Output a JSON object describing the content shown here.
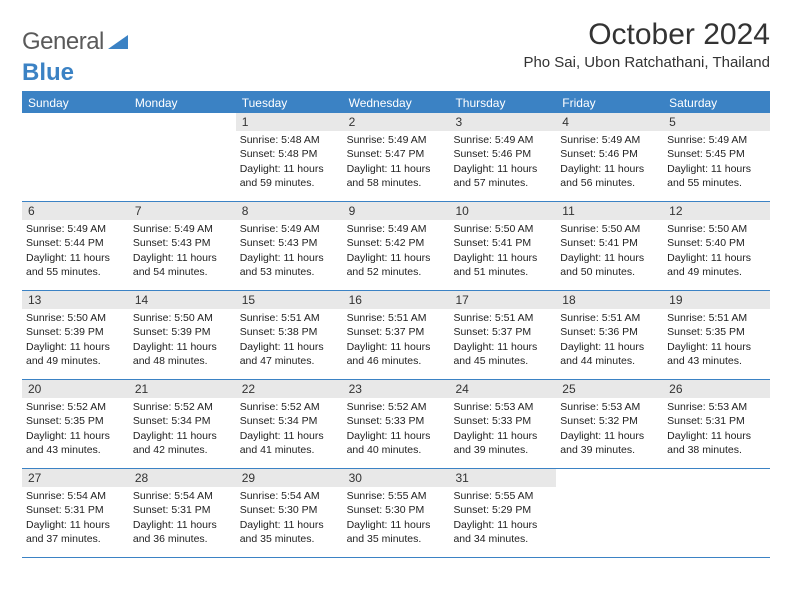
{
  "logo": {
    "word1": "General",
    "word2": "Blue"
  },
  "title": "October 2024",
  "location": "Pho Sai, Ubon Ratchathani, Thailand",
  "colors": {
    "accent": "#3b82c4",
    "header_bg": "#3b82c4",
    "header_text": "#ffffff",
    "daynum_bg": "#e8e8e8",
    "text": "#222222",
    "logo_gray": "#5a5a5a"
  },
  "day_headers": [
    "Sunday",
    "Monday",
    "Tuesday",
    "Wednesday",
    "Thursday",
    "Friday",
    "Saturday"
  ],
  "weeks": [
    [
      null,
      null,
      {
        "n": "1",
        "sunrise": "5:48 AM",
        "sunset": "5:48 PM",
        "daylight": "11 hours and 59 minutes."
      },
      {
        "n": "2",
        "sunrise": "5:49 AM",
        "sunset": "5:47 PM",
        "daylight": "11 hours and 58 minutes."
      },
      {
        "n": "3",
        "sunrise": "5:49 AM",
        "sunset": "5:46 PM",
        "daylight": "11 hours and 57 minutes."
      },
      {
        "n": "4",
        "sunrise": "5:49 AM",
        "sunset": "5:46 PM",
        "daylight": "11 hours and 56 minutes."
      },
      {
        "n": "5",
        "sunrise": "5:49 AM",
        "sunset": "5:45 PM",
        "daylight": "11 hours and 55 minutes."
      }
    ],
    [
      {
        "n": "6",
        "sunrise": "5:49 AM",
        "sunset": "5:44 PM",
        "daylight": "11 hours and 55 minutes."
      },
      {
        "n": "7",
        "sunrise": "5:49 AM",
        "sunset": "5:43 PM",
        "daylight": "11 hours and 54 minutes."
      },
      {
        "n": "8",
        "sunrise": "5:49 AM",
        "sunset": "5:43 PM",
        "daylight": "11 hours and 53 minutes."
      },
      {
        "n": "9",
        "sunrise": "5:49 AM",
        "sunset": "5:42 PM",
        "daylight": "11 hours and 52 minutes."
      },
      {
        "n": "10",
        "sunrise": "5:50 AM",
        "sunset": "5:41 PM",
        "daylight": "11 hours and 51 minutes."
      },
      {
        "n": "11",
        "sunrise": "5:50 AM",
        "sunset": "5:41 PM",
        "daylight": "11 hours and 50 minutes."
      },
      {
        "n": "12",
        "sunrise": "5:50 AM",
        "sunset": "5:40 PM",
        "daylight": "11 hours and 49 minutes."
      }
    ],
    [
      {
        "n": "13",
        "sunrise": "5:50 AM",
        "sunset": "5:39 PM",
        "daylight": "11 hours and 49 minutes."
      },
      {
        "n": "14",
        "sunrise": "5:50 AM",
        "sunset": "5:39 PM",
        "daylight": "11 hours and 48 minutes."
      },
      {
        "n": "15",
        "sunrise": "5:51 AM",
        "sunset": "5:38 PM",
        "daylight": "11 hours and 47 minutes."
      },
      {
        "n": "16",
        "sunrise": "5:51 AM",
        "sunset": "5:37 PM",
        "daylight": "11 hours and 46 minutes."
      },
      {
        "n": "17",
        "sunrise": "5:51 AM",
        "sunset": "5:37 PM",
        "daylight": "11 hours and 45 minutes."
      },
      {
        "n": "18",
        "sunrise": "5:51 AM",
        "sunset": "5:36 PM",
        "daylight": "11 hours and 44 minutes."
      },
      {
        "n": "19",
        "sunrise": "5:51 AM",
        "sunset": "5:35 PM",
        "daylight": "11 hours and 43 minutes."
      }
    ],
    [
      {
        "n": "20",
        "sunrise": "5:52 AM",
        "sunset": "5:35 PM",
        "daylight": "11 hours and 43 minutes."
      },
      {
        "n": "21",
        "sunrise": "5:52 AM",
        "sunset": "5:34 PM",
        "daylight": "11 hours and 42 minutes."
      },
      {
        "n": "22",
        "sunrise": "5:52 AM",
        "sunset": "5:34 PM",
        "daylight": "11 hours and 41 minutes."
      },
      {
        "n": "23",
        "sunrise": "5:52 AM",
        "sunset": "5:33 PM",
        "daylight": "11 hours and 40 minutes."
      },
      {
        "n": "24",
        "sunrise": "5:53 AM",
        "sunset": "5:33 PM",
        "daylight": "11 hours and 39 minutes."
      },
      {
        "n": "25",
        "sunrise": "5:53 AM",
        "sunset": "5:32 PM",
        "daylight": "11 hours and 39 minutes."
      },
      {
        "n": "26",
        "sunrise": "5:53 AM",
        "sunset": "5:31 PM",
        "daylight": "11 hours and 38 minutes."
      }
    ],
    [
      {
        "n": "27",
        "sunrise": "5:54 AM",
        "sunset": "5:31 PM",
        "daylight": "11 hours and 37 minutes."
      },
      {
        "n": "28",
        "sunrise": "5:54 AM",
        "sunset": "5:31 PM",
        "daylight": "11 hours and 36 minutes."
      },
      {
        "n": "29",
        "sunrise": "5:54 AM",
        "sunset": "5:30 PM",
        "daylight": "11 hours and 35 minutes."
      },
      {
        "n": "30",
        "sunrise": "5:55 AM",
        "sunset": "5:30 PM",
        "daylight": "11 hours and 35 minutes."
      },
      {
        "n": "31",
        "sunrise": "5:55 AM",
        "sunset": "5:29 PM",
        "daylight": "11 hours and 34 minutes."
      },
      null,
      null
    ]
  ],
  "labels": {
    "sunrise": "Sunrise:",
    "sunset": "Sunset:",
    "daylight": "Daylight:"
  }
}
